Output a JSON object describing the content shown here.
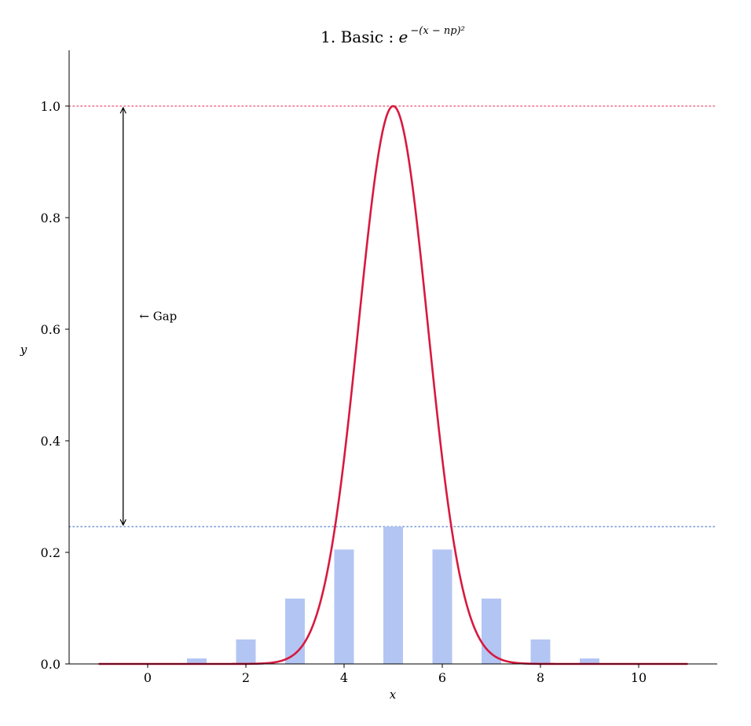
{
  "chart_data": {
    "type": "bar",
    "title": "1. Basic :  e^{-(x - np)^2}",
    "title_parts": {
      "prefix": "1. Basic :  ",
      "base": "e",
      "exponent": "−(x − np)²"
    },
    "xlabel": "x",
    "ylabel": "y",
    "xlim": [
      -1.6,
      11.6
    ],
    "ylim": [
      0,
      1.1
    ],
    "x_ticks": [
      0,
      2,
      4,
      6,
      8,
      10
    ],
    "y_ticks": [
      0.0,
      0.2,
      0.4,
      0.6,
      0.8,
      1.0
    ],
    "y_tick_labels": [
      "0.0",
      "0.2",
      "0.4",
      "0.6",
      "0.8",
      "1.0"
    ],
    "grid": false,
    "series": [
      {
        "kind": "bar",
        "color": "#b3c5f3",
        "bar_width": 0.4,
        "x": [
          0,
          1,
          2,
          3,
          4,
          5,
          6,
          7,
          8,
          9,
          10
        ],
        "values": [
          0.001,
          0.0098,
          0.0439,
          0.1172,
          0.2051,
          0.2461,
          0.2051,
          0.1172,
          0.0439,
          0.0098,
          0.001
        ]
      },
      {
        "kind": "line",
        "color": "#d7193f",
        "function": "exp(-(x-5)^2)",
        "x_range": [
          -1,
          11
        ],
        "center": 5
      }
    ],
    "reference_lines": [
      {
        "axis": "y",
        "value": 1.0,
        "style": "dotted",
        "color": "#ef6b83"
      },
      {
        "axis": "y",
        "value": 0.2461,
        "style": "dotted",
        "color": "#7d9ed6"
      }
    ],
    "annotations": [
      {
        "type": "double-arrow",
        "x": -0.5,
        "y_from": 0.2461,
        "y_to": 1.0,
        "color": "#000000"
      },
      {
        "type": "text",
        "text": "← Gap",
        "x": -0.17,
        "y": 0.623
      }
    ]
  }
}
